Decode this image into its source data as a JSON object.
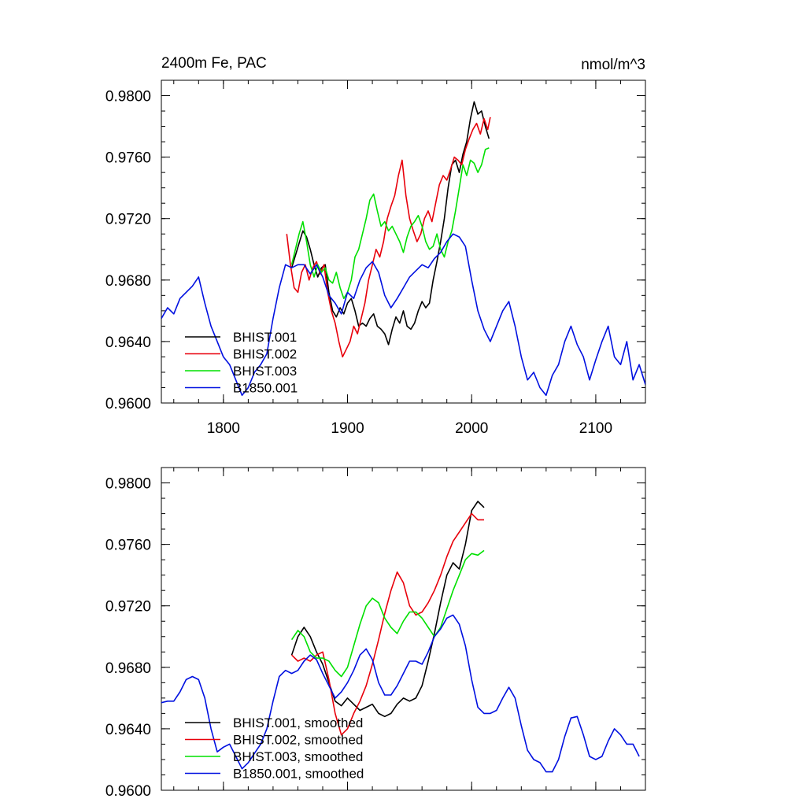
{
  "colors": {
    "black": "#000000",
    "red": "#e8000b",
    "green": "#00e000",
    "blue": "#0010e0"
  },
  "chart_data": [
    {
      "type": "line",
      "title": "2400m Fe, PAC",
      "units": "nmol/m^3",
      "xlim": [
        1750,
        2140
      ],
      "ylim": [
        0.96,
        0.981
      ],
      "xticks": [
        1800,
        1900,
        2000,
        2100
      ],
      "xtick_labels": [
        "1800",
        "1900",
        "2000",
        "2100"
      ],
      "yticks": [
        0.96,
        0.964,
        0.968,
        0.972,
        0.976,
        0.98
      ],
      "ytick_labels": [
        "0.9600",
        "0.9640",
        "0.9680",
        "0.9720",
        "0.9760",
        "0.9800"
      ],
      "legend_position": "lower-left",
      "series": [
        {
          "name": "BHIST.001",
          "color": "#000000",
          "x": [
            1855,
            1858,
            1861,
            1864,
            1867,
            1870,
            1873,
            1876,
            1879,
            1882,
            1885,
            1888,
            1891,
            1894,
            1897,
            1900,
            1903,
            1906,
            1909,
            1912,
            1915,
            1918,
            1921,
            1924,
            1927,
            1930,
            1933,
            1936,
            1939,
            1942,
            1945,
            1948,
            1951,
            1954,
            1957,
            1960,
            1963,
            1966,
            1969,
            1972,
            1975,
            1978,
            1981,
            1984,
            1987,
            1990,
            1993,
            1996,
            1999,
            2002,
            2005,
            2008,
            2011,
            2014
          ],
          "y": [
            0.9688,
            0.9696,
            0.9704,
            0.9712,
            0.9708,
            0.97,
            0.969,
            0.9682,
            0.9688,
            0.969,
            0.9672,
            0.966,
            0.9656,
            0.9662,
            0.9658,
            0.9665,
            0.9668,
            0.966,
            0.965,
            0.9652,
            0.965,
            0.9655,
            0.9658,
            0.965,
            0.9648,
            0.9645,
            0.9638,
            0.9648,
            0.9656,
            0.9652,
            0.966,
            0.965,
            0.9648,
            0.9652,
            0.966,
            0.9666,
            0.9662,
            0.9665,
            0.968,
            0.9692,
            0.9705,
            0.972,
            0.974,
            0.9755,
            0.9758,
            0.975,
            0.9762,
            0.977,
            0.9785,
            0.9796,
            0.9788,
            0.979,
            0.978,
            0.9772
          ]
        },
        {
          "name": "BHIST.002",
          "color": "#e8000b",
          "x": [
            1851,
            1854,
            1857,
            1860,
            1863,
            1866,
            1869,
            1872,
            1875,
            1878,
            1881,
            1884,
            1887,
            1890,
            1893,
            1896,
            1899,
            1902,
            1905,
            1908,
            1911,
            1914,
            1917,
            1920,
            1923,
            1926,
            1929,
            1932,
            1935,
            1938,
            1941,
            1944,
            1947,
            1950,
            1953,
            1956,
            1959,
            1962,
            1965,
            1968,
            1971,
            1974,
            1977,
            1980,
            1983,
            1986,
            1989,
            1992,
            1995,
            1998,
            2001,
            2004,
            2007,
            2010,
            2013,
            2015
          ],
          "y": [
            0.971,
            0.969,
            0.9675,
            0.9672,
            0.9685,
            0.969,
            0.968,
            0.9688,
            0.9692,
            0.9684,
            0.969,
            0.9672,
            0.966,
            0.9652,
            0.964,
            0.963,
            0.9635,
            0.964,
            0.965,
            0.9645,
            0.9655,
            0.9665,
            0.968,
            0.969,
            0.97,
            0.9695,
            0.9705,
            0.972,
            0.9728,
            0.9735,
            0.9748,
            0.9758,
            0.9735,
            0.972,
            0.9712,
            0.9705,
            0.971,
            0.972,
            0.9725,
            0.9718,
            0.973,
            0.9742,
            0.9748,
            0.9745,
            0.9752,
            0.976,
            0.9758,
            0.9755,
            0.9765,
            0.9772,
            0.9778,
            0.9782,
            0.9775,
            0.9785,
            0.9778,
            0.9786
          ]
        },
        {
          "name": "BHIST.003",
          "color": "#00e000",
          "x": [
            1855,
            1858,
            1861,
            1864,
            1867,
            1870,
            1873,
            1876,
            1879,
            1882,
            1885,
            1888,
            1891,
            1894,
            1897,
            1900,
            1903,
            1906,
            1909,
            1912,
            1915,
            1918,
            1921,
            1924,
            1927,
            1930,
            1933,
            1936,
            1939,
            1942,
            1945,
            1948,
            1951,
            1954,
            1957,
            1960,
            1963,
            1966,
            1969,
            1972,
            1975,
            1978,
            1981,
            1984,
            1987,
            1990,
            1993,
            1996,
            1999,
            2002,
            2005,
            2008,
            2011,
            2014
          ],
          "y": [
            0.969,
            0.97,
            0.971,
            0.9718,
            0.9705,
            0.969,
            0.9682,
            0.969,
            0.9685,
            0.9688,
            0.968,
            0.9678,
            0.9685,
            0.9675,
            0.9668,
            0.9672,
            0.968,
            0.9695,
            0.97,
            0.971,
            0.972,
            0.9732,
            0.9736,
            0.9725,
            0.9715,
            0.9718,
            0.9712,
            0.9715,
            0.971,
            0.9705,
            0.9698,
            0.9708,
            0.9715,
            0.9718,
            0.9722,
            0.9715,
            0.9705,
            0.97,
            0.9702,
            0.971,
            0.97,
            0.9695,
            0.9705,
            0.9712,
            0.9725,
            0.974,
            0.9755,
            0.9748,
            0.9758,
            0.9756,
            0.975,
            0.9755,
            0.9765,
            0.9766
          ]
        },
        {
          "name": "B1850.001",
          "color": "#0010e0",
          "x": [
            1750,
            1755,
            1760,
            1765,
            1770,
            1775,
            1780,
            1785,
            1790,
            1795,
            1800,
            1805,
            1810,
            1815,
            1820,
            1825,
            1830,
            1835,
            1840,
            1845,
            1850,
            1855,
            1860,
            1865,
            1870,
            1875,
            1880,
            1885,
            1890,
            1895,
            1900,
            1905,
            1910,
            1915,
            1920,
            1925,
            1930,
            1935,
            1940,
            1945,
            1950,
            1955,
            1960,
            1965,
            1970,
            1975,
            1980,
            1985,
            1990,
            1995,
            2000,
            2005,
            2010,
            2015,
            2020,
            2025,
            2030,
            2035,
            2040,
            2045,
            2050,
            2055,
            2060,
            2065,
            2070,
            2075,
            2080,
            2085,
            2090,
            2095,
            2100,
            2105,
            2110,
            2115,
            2120,
            2125,
            2130,
            2135,
            2140
          ],
          "y": [
            0.9655,
            0.9662,
            0.9658,
            0.9668,
            0.9672,
            0.9676,
            0.9682,
            0.9665,
            0.965,
            0.964,
            0.963,
            0.9625,
            0.9615,
            0.9605,
            0.961,
            0.962,
            0.9625,
            0.9632,
            0.9655,
            0.9675,
            0.969,
            0.9688,
            0.969,
            0.969,
            0.9684,
            0.969,
            0.9682,
            0.967,
            0.9665,
            0.9658,
            0.9672,
            0.9668,
            0.968,
            0.9688,
            0.9692,
            0.9685,
            0.967,
            0.9662,
            0.9668,
            0.9675,
            0.9682,
            0.9686,
            0.969,
            0.9688,
            0.9694,
            0.9698,
            0.9705,
            0.971,
            0.9708,
            0.9702,
            0.968,
            0.966,
            0.9648,
            0.964,
            0.965,
            0.966,
            0.9666,
            0.965,
            0.963,
            0.9615,
            0.962,
            0.961,
            0.9605,
            0.9618,
            0.9625,
            0.964,
            0.965,
            0.9638,
            0.963,
            0.9615,
            0.9628,
            0.964,
            0.965,
            0.963,
            0.9625,
            0.964,
            0.9615,
            0.9625,
            0.9612
          ]
        }
      ]
    },
    {
      "type": "line",
      "title": "",
      "xlim": [
        1750,
        2140
      ],
      "ylim": [
        0.96,
        0.981
      ],
      "xticks": [
        1800,
        1900,
        2000,
        2100
      ],
      "yticks": [
        0.96,
        0.964,
        0.968,
        0.972,
        0.976,
        0.98
      ],
      "ytick_labels": [
        "0.9600",
        "0.9640",
        "0.9680",
        "0.9720",
        "0.9760",
        "0.9800"
      ],
      "legend_position": "lower-left",
      "series": [
        {
          "name": "BHIST.001, smoothed",
          "color": "#000000",
          "x": [
            1855,
            1860,
            1865,
            1870,
            1875,
            1880,
            1885,
            1890,
            1895,
            1900,
            1905,
            1910,
            1915,
            1920,
            1925,
            1930,
            1935,
            1940,
            1945,
            1950,
            1955,
            1960,
            1965,
            1970,
            1975,
            1980,
            1985,
            1990,
            1995,
            2000,
            2005,
            2010
          ],
          "y": [
            0.9688,
            0.97,
            0.9706,
            0.97,
            0.969,
            0.9682,
            0.967,
            0.9658,
            0.9655,
            0.966,
            0.9656,
            0.9652,
            0.9654,
            0.9656,
            0.965,
            0.9648,
            0.965,
            0.9656,
            0.966,
            0.9658,
            0.966,
            0.9668,
            0.9684,
            0.9702,
            0.9722,
            0.974,
            0.9748,
            0.9744,
            0.976,
            0.9782,
            0.9788,
            0.9784
          ]
        },
        {
          "name": "BHIST.002, smoothed",
          "color": "#e8000b",
          "x": [
            1855,
            1860,
            1865,
            1870,
            1875,
            1880,
            1885,
            1890,
            1895,
            1900,
            1905,
            1910,
            1915,
            1920,
            1925,
            1930,
            1935,
            1940,
            1945,
            1950,
            1955,
            1960,
            1965,
            1970,
            1975,
            1980,
            1985,
            1990,
            1995,
            2000,
            2005,
            2010
          ],
          "y": [
            0.9688,
            0.9684,
            0.9686,
            0.9684,
            0.9688,
            0.969,
            0.9672,
            0.965,
            0.9636,
            0.964,
            0.965,
            0.9658,
            0.9668,
            0.9682,
            0.9698,
            0.9715,
            0.973,
            0.9742,
            0.9735,
            0.972,
            0.9714,
            0.9716,
            0.9722,
            0.973,
            0.974,
            0.9752,
            0.9762,
            0.9768,
            0.9774,
            0.978,
            0.9776,
            0.9776
          ]
        },
        {
          "name": "BHIST.003, smoothed",
          "color": "#00e000",
          "x": [
            1855,
            1860,
            1865,
            1870,
            1875,
            1880,
            1885,
            1890,
            1895,
            1900,
            1905,
            1910,
            1915,
            1920,
            1925,
            1930,
            1935,
            1940,
            1945,
            1950,
            1955,
            1960,
            1965,
            1970,
            1975,
            1980,
            1985,
            1990,
            1995,
            2000,
            2005,
            2010
          ],
          "y": [
            0.9698,
            0.9704,
            0.97,
            0.969,
            0.9686,
            0.9686,
            0.9684,
            0.9678,
            0.9674,
            0.968,
            0.9694,
            0.9708,
            0.972,
            0.9725,
            0.9722,
            0.9712,
            0.9706,
            0.9702,
            0.971,
            0.9716,
            0.9716,
            0.9712,
            0.9706,
            0.97,
            0.9706,
            0.9718,
            0.973,
            0.974,
            0.975,
            0.9754,
            0.9753,
            0.9756
          ]
        },
        {
          "name": "B1850.001, smoothed",
          "color": "#0010e0",
          "x": [
            1750,
            1755,
            1760,
            1765,
            1770,
            1775,
            1780,
            1785,
            1790,
            1795,
            1800,
            1805,
            1810,
            1815,
            1820,
            1825,
            1830,
            1835,
            1840,
            1845,
            1850,
            1855,
            1860,
            1865,
            1870,
            1875,
            1880,
            1885,
            1890,
            1895,
            1900,
            1905,
            1910,
            1915,
            1920,
            1925,
            1930,
            1935,
            1940,
            1945,
            1950,
            1955,
            1960,
            1965,
            1970,
            1975,
            1980,
            1985,
            1990,
            1995,
            2000,
            2005,
            2010,
            2015,
            2020,
            2025,
            2030,
            2035,
            2040,
            2045,
            2050,
            2055,
            2060,
            2065,
            2070,
            2075,
            2080,
            2085,
            2090,
            2095,
            2100,
            2105,
            2110,
            2115,
            2120,
            2125,
            2130,
            2135
          ],
          "y": [
            0.9657,
            0.9658,
            0.9658,
            0.9664,
            0.9672,
            0.9674,
            0.9672,
            0.966,
            0.964,
            0.9625,
            0.9628,
            0.963,
            0.9622,
            0.9614,
            0.9618,
            0.9624,
            0.963,
            0.964,
            0.9658,
            0.9674,
            0.9678,
            0.9676,
            0.9678,
            0.9684,
            0.9688,
            0.9685,
            0.9676,
            0.9668,
            0.966,
            0.9664,
            0.967,
            0.9678,
            0.9688,
            0.9692,
            0.9685,
            0.967,
            0.9662,
            0.9662,
            0.9668,
            0.9676,
            0.9684,
            0.9684,
            0.9682,
            0.969,
            0.97,
            0.9705,
            0.9712,
            0.9714,
            0.9708,
            0.9694,
            0.9672,
            0.9654,
            0.965,
            0.965,
            0.9652,
            0.966,
            0.9667,
            0.966,
            0.9642,
            0.9626,
            0.962,
            0.9618,
            0.9612,
            0.9612,
            0.962,
            0.9635,
            0.9647,
            0.9648,
            0.9636,
            0.9622,
            0.962,
            0.9622,
            0.9632,
            0.964,
            0.9636,
            0.963,
            0.963,
            0.9622
          ]
        }
      ]
    }
  ]
}
